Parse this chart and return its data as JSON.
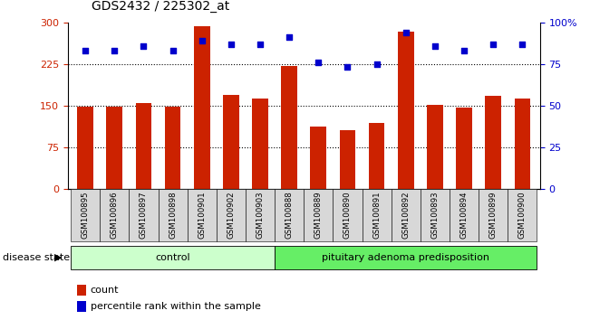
{
  "title": "GDS2432 / 225302_at",
  "samples": [
    "GSM100895",
    "GSM100896",
    "GSM100897",
    "GSM100898",
    "GSM100901",
    "GSM100902",
    "GSM100903",
    "GSM100888",
    "GSM100889",
    "GSM100890",
    "GSM100891",
    "GSM100892",
    "GSM100893",
    "GSM100894",
    "GSM100899",
    "GSM100900"
  ],
  "counts": [
    148,
    148,
    155,
    148,
    293,
    170,
    162,
    222,
    113,
    105,
    118,
    283,
    152,
    147,
    168,
    162
  ],
  "percentiles": [
    83,
    83,
    86,
    83,
    89,
    87,
    87,
    91,
    76,
    73,
    75,
    94,
    86,
    83,
    87,
    87
  ],
  "groups": [
    {
      "label": "control",
      "start": 0,
      "end": 7,
      "color": "#ccffcc"
    },
    {
      "label": "pituitary adenoma predisposition",
      "start": 7,
      "end": 16,
      "color": "#66ee66"
    }
  ],
  "bar_color": "#cc2200",
  "dot_color": "#0000cc",
  "ylim_left": [
    0,
    300
  ],
  "ylim_right": [
    0,
    100
  ],
  "yticks_left": [
    0,
    75,
    150,
    225,
    300
  ],
  "yticks_right": [
    0,
    25,
    50,
    75,
    100
  ],
  "ytick_labels_right": [
    "0",
    "25",
    "50",
    "75",
    "100%"
  ],
  "hlines": [
    75,
    150,
    225
  ],
  "bg_color": "#ffffff",
  "plot_bg_color": "#ffffff",
  "disease_state_label": "disease state",
  "legend_count_label": "count",
  "legend_pct_label": "percentile rank within the sample",
  "n_control": 7,
  "n_total": 16
}
